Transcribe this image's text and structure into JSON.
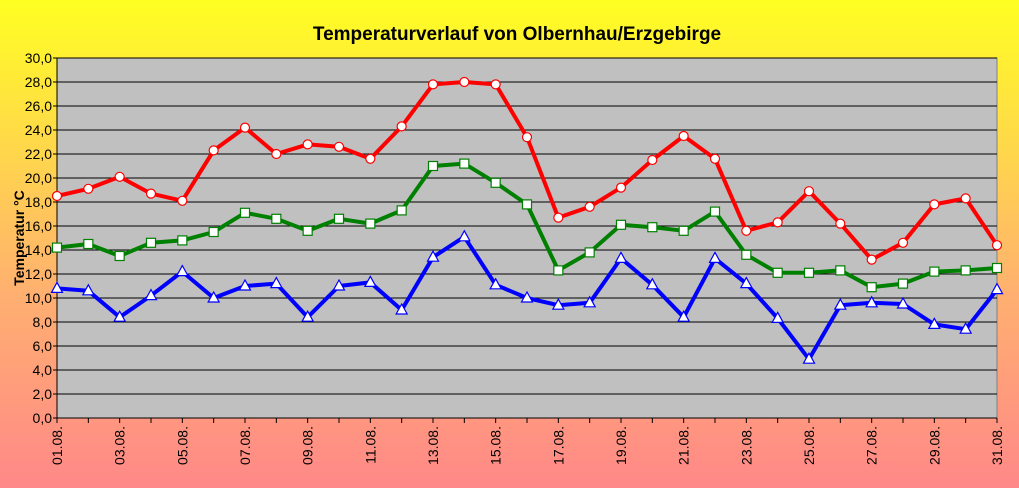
{
  "chart_data": {
    "type": "line",
    "title": "Temperaturverlauf von Olbernhau/Erzgebirge",
    "ylabel": "Temperatur °C",
    "xlabel": "",
    "ylim": [
      0,
      30
    ],
    "y_ticks": [
      "0,0",
      "2,0",
      "4,0",
      "6,0",
      "8,0",
      "10,0",
      "12,0",
      "14,0",
      "16,0",
      "18,0",
      "20,0",
      "22,0",
      "24,0",
      "26,0",
      "28,0",
      "30,0"
    ],
    "x": [
      "01.08.",
      "02.08.",
      "03.08.",
      "04.08.",
      "05.08.",
      "06.08.",
      "07.08.",
      "08.08.",
      "09.08.",
      "10.08.",
      "11.08.",
      "12.08.",
      "13.08.",
      "14.08.",
      "15.08.",
      "16.08.",
      "17.08.",
      "18.08.",
      "19.08.",
      "20.08.",
      "21.08.",
      "22.08.",
      "23.08.",
      "24.08.",
      "25.08.",
      "26.08.",
      "27.08.",
      "28.08.",
      "29.08.",
      "30.08.",
      "31.08."
    ],
    "x_tick_labels": [
      "01.08.",
      "03.08.",
      "05.08.",
      "07.08.",
      "09.08.",
      "11.08.",
      "13.08.",
      "15.08.",
      "17.08.",
      "19.08.",
      "21.08.",
      "23.08.",
      "25.08.",
      "27.08.",
      "29.08.",
      "31.08."
    ],
    "grid": true,
    "legend": "none",
    "plot_background": "#c0c0c0",
    "series": [
      {
        "color": "#ff0000",
        "marker": "circle",
        "values": [
          18.5,
          19.1,
          20.1,
          18.7,
          18.1,
          22.3,
          24.2,
          22.0,
          22.8,
          22.6,
          21.6,
          24.3,
          27.8,
          28.0,
          27.8,
          23.4,
          16.7,
          17.6,
          19.2,
          21.5,
          23.5,
          21.6,
          15.6,
          16.3,
          18.9,
          16.2,
          13.2,
          14.6,
          17.8,
          18.3,
          14.4
        ]
      },
      {
        "color": "#008000",
        "marker": "square",
        "values": [
          14.2,
          14.5,
          13.5,
          14.6,
          14.8,
          15.5,
          17.1,
          16.6,
          15.6,
          16.6,
          16.2,
          17.3,
          21.0,
          21.2,
          19.6,
          17.8,
          12.3,
          13.8,
          16.1,
          15.9,
          15.6,
          17.2,
          13.6,
          12.1,
          12.1,
          12.3,
          10.9,
          11.2,
          12.2,
          12.3,
          12.5
        ]
      },
      {
        "color": "#0000ff",
        "marker": "triangle",
        "values": [
          10.8,
          10.6,
          8.4,
          10.2,
          12.2,
          10.0,
          11.0,
          11.2,
          8.4,
          11.0,
          11.3,
          9.0,
          13.4,
          15.1,
          11.1,
          10.0,
          9.4,
          9.6,
          13.3,
          11.1,
          8.4,
          13.3,
          11.2,
          8.3,
          4.9,
          9.4,
          9.6,
          9.5,
          7.8,
          7.4,
          10.7
        ]
      }
    ]
  }
}
